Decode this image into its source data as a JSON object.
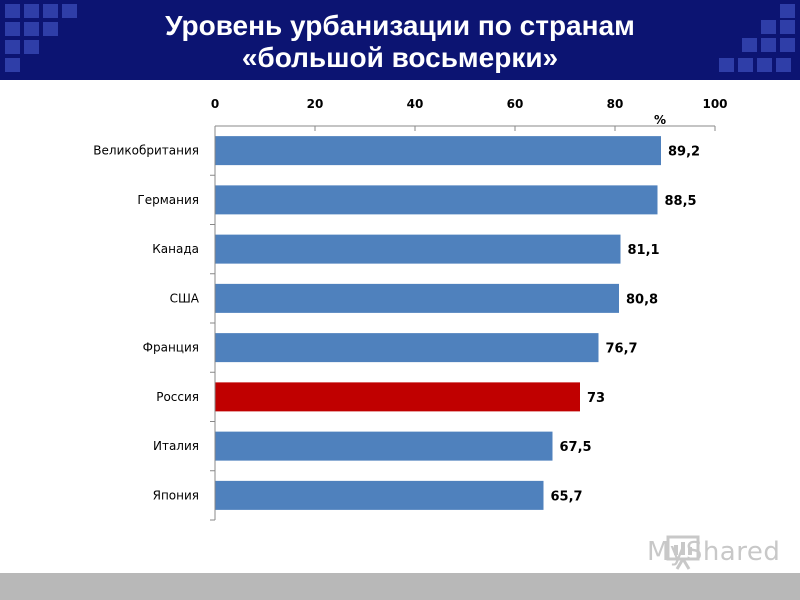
{
  "header": {
    "title_line1": "Уровень урбанизации по странам",
    "title_line2": "«большой восьмерки»"
  },
  "chart_data": {
    "type": "bar",
    "orientation": "horizontal",
    "title": "",
    "xlabel": "%",
    "ylabel": "",
    "xlim": [
      0,
      100
    ],
    "x_ticks": [
      0,
      20,
      40,
      60,
      80,
      100
    ],
    "x_axis_position": "top",
    "grid": false,
    "categories": [
      "Великобритания",
      "Германия",
      "Канада",
      "США",
      "Франция",
      "Россия",
      "Италия",
      "Япония"
    ],
    "values": [
      89.2,
      88.5,
      81.1,
      80.8,
      76.7,
      73,
      67.5,
      65.7
    ],
    "value_labels": [
      "89,2",
      "88,5",
      "81,1",
      "80,8",
      "76,7",
      "73",
      "67,5",
      "65,7"
    ],
    "colors": {
      "default": "#4f81bd",
      "highlight": "#c00000",
      "highlight_category": "Россия"
    }
  },
  "watermark": {
    "text": "MyShared",
    "icon": "presentation-board-icon"
  }
}
